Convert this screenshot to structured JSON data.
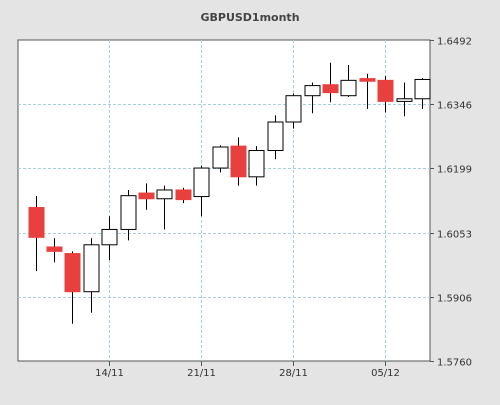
{
  "chart_data": {
    "type": "candlestick",
    "title": "GBPUSD1month",
    "ylim": [
      1.576,
      1.6492
    ],
    "yticks": [
      "1.6492",
      "1.6346",
      "1.6199",
      "1.6053",
      "1.5906",
      "1.5760"
    ],
    "xticks": [
      {
        "label": "14/11",
        "index": 4
      },
      {
        "label": "21/11",
        "index": 9
      },
      {
        "label": "28/11",
        "index": 14
      },
      {
        "label": "05/12",
        "index": 19
      }
    ],
    "grid": true,
    "colors": {
      "up_fill": "#ffffff",
      "down_fill": "#e8403f",
      "candle_outline": "#000000",
      "grid": "#a8d0d8",
      "plot_bg": "#ffffff",
      "frame_bg": "#e4e4e4"
    },
    "candles": [
      {
        "open": 1.611,
        "high": 1.6136,
        "low": 1.5965,
        "close": 1.6042
      },
      {
        "open": 1.602,
        "high": 1.604,
        "low": 1.5985,
        "close": 1.601
      },
      {
        "open": 1.6005,
        "high": 1.601,
        "low": 1.5845,
        "close": 1.5918
      },
      {
        "open": 1.5918,
        "high": 1.604,
        "low": 1.587,
        "close": 1.6025
      },
      {
        "open": 1.6025,
        "high": 1.609,
        "low": 1.599,
        "close": 1.606
      },
      {
        "open": 1.606,
        "high": 1.615,
        "low": 1.6035,
        "close": 1.6137
      },
      {
        "open": 1.6143,
        "high": 1.6165,
        "low": 1.6105,
        "close": 1.613
      },
      {
        "open": 1.613,
        "high": 1.616,
        "low": 1.606,
        "close": 1.615
      },
      {
        "open": 1.615,
        "high": 1.6155,
        "low": 1.612,
        "close": 1.6128
      },
      {
        "open": 1.6135,
        "high": 1.6205,
        "low": 1.609,
        "close": 1.62
      },
      {
        "open": 1.62,
        "high": 1.6252,
        "low": 1.619,
        "close": 1.6248
      },
      {
        "open": 1.625,
        "high": 1.627,
        "low": 1.616,
        "close": 1.618
      },
      {
        "open": 1.618,
        "high": 1.625,
        "low": 1.616,
        "close": 1.624
      },
      {
        "open": 1.624,
        "high": 1.632,
        "low": 1.622,
        "close": 1.6305
      },
      {
        "open": 1.6305,
        "high": 1.637,
        "low": 1.629,
        "close": 1.6365
      },
      {
        "open": 1.6365,
        "high": 1.6395,
        "low": 1.6325,
        "close": 1.6388
      },
      {
        "open": 1.639,
        "high": 1.644,
        "low": 1.635,
        "close": 1.6372
      },
      {
        "open": 1.6365,
        "high": 1.6435,
        "low": 1.6362,
        "close": 1.64
      },
      {
        "open": 1.6404,
        "high": 1.6415,
        "low": 1.6335,
        "close": 1.6398
      },
      {
        "open": 1.64,
        "high": 1.641,
        "low": 1.6327,
        "close": 1.6352
      },
      {
        "open": 1.6352,
        "high": 1.6395,
        "low": 1.6318,
        "close": 1.6358
      },
      {
        "open": 1.6358,
        "high": 1.6405,
        "low": 1.6335,
        "close": 1.6402
      }
    ]
  }
}
